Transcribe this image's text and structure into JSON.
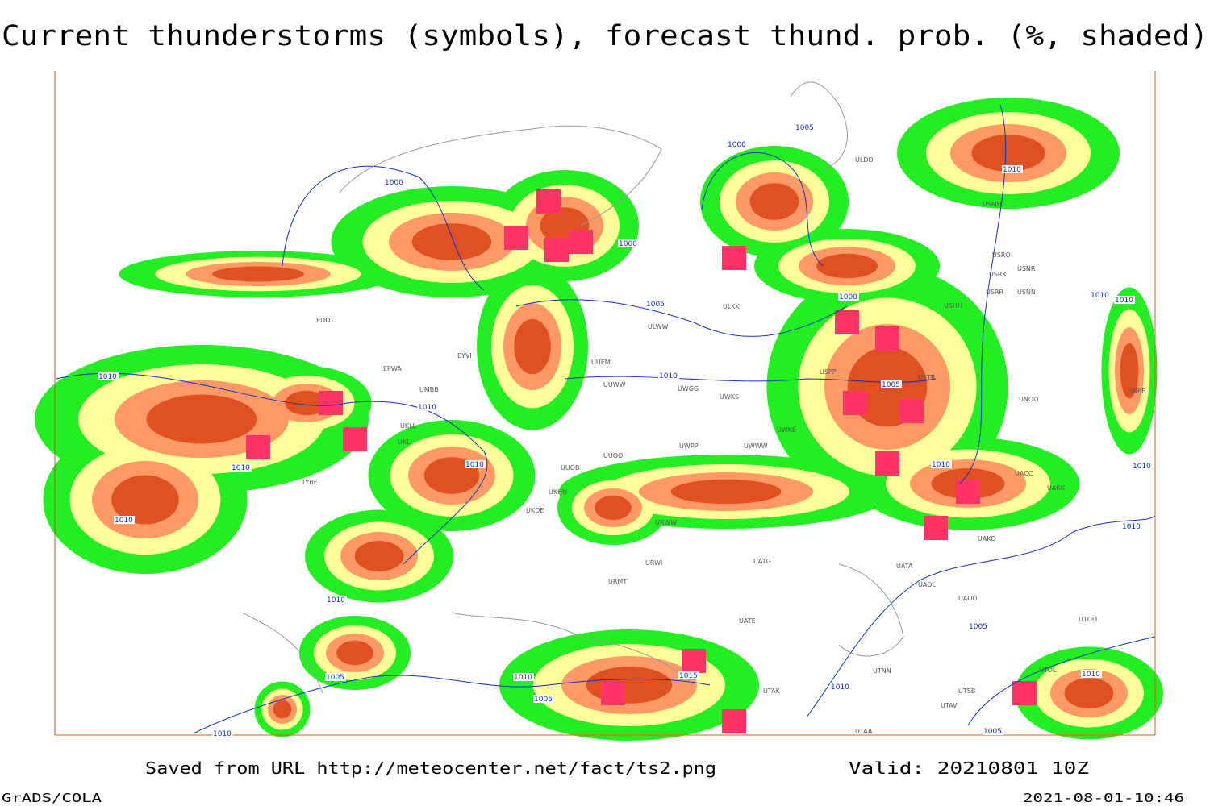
{
  "header": {
    "title": "Current thunderstorms (symbols), forecast thund. prob. (%, shaded)"
  },
  "map": {
    "stations": [
      "EDDT",
      "EPWA",
      "EYVI",
      "UMBB",
      "UKLL",
      "UKLI",
      "LYBE",
      "UUEM",
      "UUWW",
      "UWGG",
      "UWKS",
      "UWPP",
      "UWWW",
      "UWKE",
      "UUOB",
      "UUOO",
      "UKHH",
      "UKDE",
      "URWW",
      "URWI",
      "URMT",
      "UATG",
      "UATA",
      "UAOL",
      "UAOO",
      "UATE",
      "UTNN",
      "UTAK",
      "UTAA",
      "UTSB",
      "UTAV",
      "USPP",
      "USTR",
      "USHH",
      "USRR",
      "USNN",
      "USRK",
      "USNR",
      "USRO",
      "USMU",
      "ULDD",
      "ULWW",
      "ULKK",
      "UACC",
      "UAKK",
      "UAKD",
      "UNOO",
      "UNBB",
      "UTDD",
      "UTDL"
    ],
    "isobar_labels": [
      1005,
      1000,
      1000,
      1010,
      1000,
      1005,
      1000,
      1010,
      1010,
      1010,
      1010,
      1010,
      1005,
      1010,
      1010,
      1010,
      1010,
      1010,
      1010,
      1010,
      1005,
      1005,
      1010,
      1015,
      1005,
      1010,
      1010,
      1010,
      1005
    ]
  },
  "footer": {
    "source": "Saved from URL http://meteocenter.net/fact/ts2.png",
    "valid": "Valid: 20210801 10Z",
    "software": "GrADS/COLA",
    "timestamp": "2021-08-01-10:46"
  }
}
